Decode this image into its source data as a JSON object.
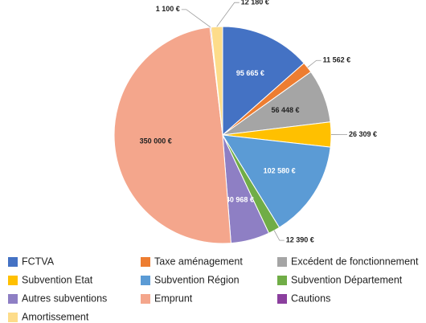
{
  "chart_data": {
    "type": "pie",
    "categories": [
      "FCTVA",
      "Taxe aménagement",
      "Excédent de fonctionnement",
      "Subvention Etat",
      "Subvention Région",
      "Subvention Département",
      "Autres subventions",
      "Emprunt",
      "Cautions",
      "Amortissement"
    ],
    "values": [
      95665,
      11562,
      56448,
      26309,
      102580,
      12390,
      40968,
      350000,
      1100,
      12180
    ],
    "value_labels": [
      "95 665 €",
      "11 562 €",
      "56 448 €",
      "26 309 €",
      "102 580 €",
      "12 390 €",
      "40 968 €",
      "350 000 €",
      "1 100 €",
      "12 180 €"
    ],
    "colors": [
      "#4472c4",
      "#ed7d31",
      "#a5a5a5",
      "#ffc000",
      "#5b9bd5",
      "#70ad47",
      "#8e7fc4",
      "#f4a68c",
      "#8b3f9e",
      "#fddc8a"
    ]
  }
}
